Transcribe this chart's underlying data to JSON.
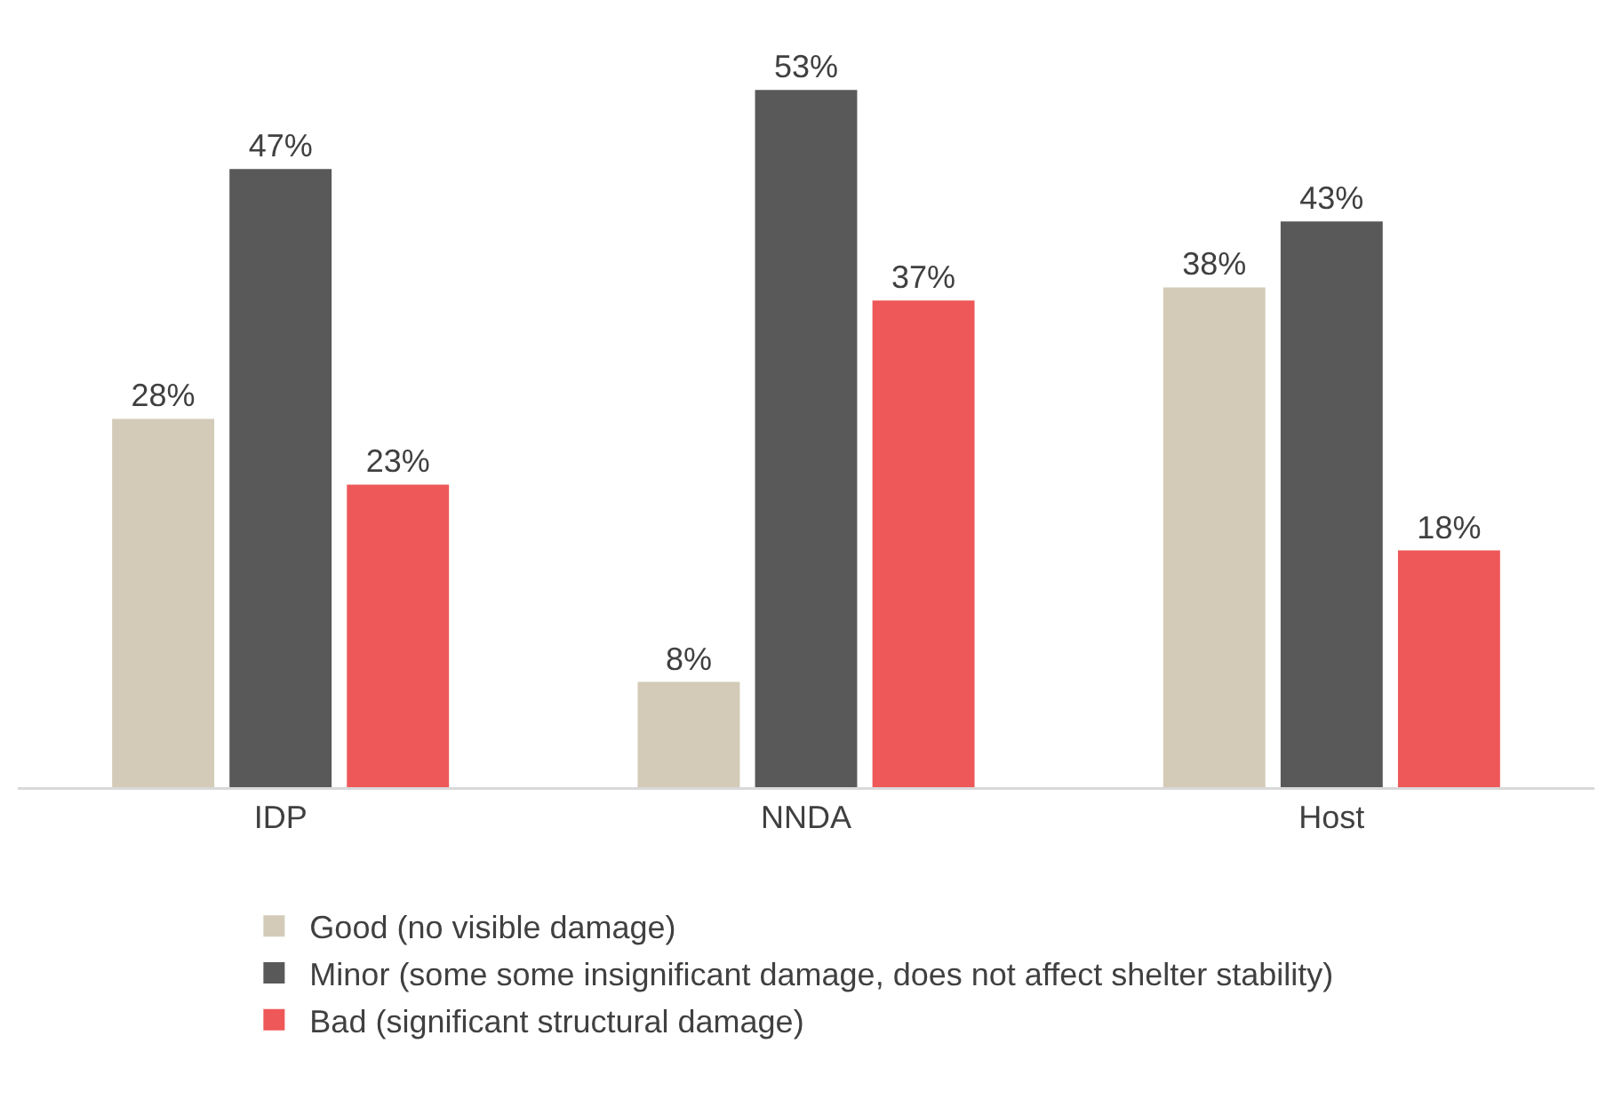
{
  "chart_data": {
    "type": "bar",
    "categories": [
      "IDP",
      "NNDA",
      "Host"
    ],
    "series": [
      {
        "name": "Good (no visible damage)",
        "color": "#d3cbb8",
        "values": [
          28,
          8,
          38
        ],
        "value_labels": [
          "28%",
          "8%",
          "38%"
        ]
      },
      {
        "name": "Minor (some some insignificant damage, does not affect shelter stability)",
        "color": "#595959",
        "values": [
          47,
          53,
          43
        ],
        "value_labels": [
          "47%",
          "53%",
          "43%"
        ]
      },
      {
        "name": "Bad (significant structural damage)",
        "color": "#ee5859",
        "values": [
          23,
          37,
          18
        ],
        "value_labels": [
          "23%",
          "37%",
          "18%"
        ]
      }
    ],
    "legend": "bottom"
  }
}
